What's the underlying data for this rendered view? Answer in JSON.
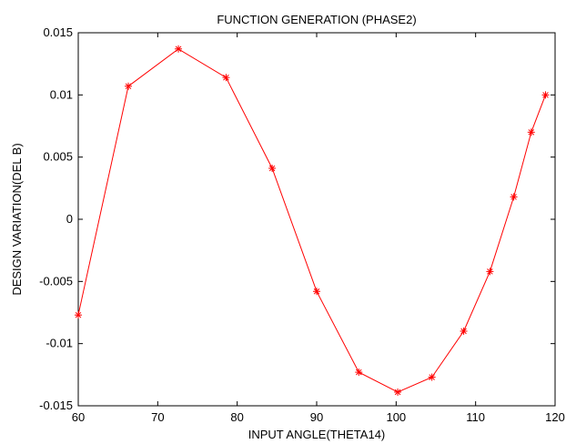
{
  "chart_data": {
    "type": "line",
    "title": "FUNCTION GENERATION (PHASE2)",
    "xlabel": "INPUT ANGLE(THETA14)",
    "ylabel": "DESIGN VARIATION(DEL B)",
    "xlim": [
      60,
      120
    ],
    "ylim": [
      -0.015,
      0.015
    ],
    "xticks": [
      60,
      70,
      80,
      90,
      100,
      110,
      120
    ],
    "xtick_labels": [
      "60",
      "70",
      "80",
      "90",
      "100",
      "110",
      "120"
    ],
    "yticks": [
      -0.015,
      -0.01,
      -0.005,
      0,
      0.005,
      0.01,
      0.015
    ],
    "ytick_labels": [
      "-0.015",
      "-0.01",
      "-0.005",
      "0",
      "0.005",
      "0.01",
      "0.015"
    ],
    "grid": false,
    "series": [
      {
        "color": "#ff0000",
        "marker": "asterisk",
        "x": [
          60,
          66.3,
          72.6,
          78.6,
          84.4,
          90.0,
          95.3,
          100.2,
          104.5,
          108.5,
          111.8,
          114.8,
          117.0,
          118.8
        ],
        "y": [
          -0.0077,
          0.0107,
          0.0137,
          0.0114,
          0.0041,
          -0.0058,
          -0.0123,
          -0.0139,
          -0.0127,
          -0.009,
          -0.0042,
          0.0018,
          0.007,
          0.01
        ]
      }
    ]
  }
}
